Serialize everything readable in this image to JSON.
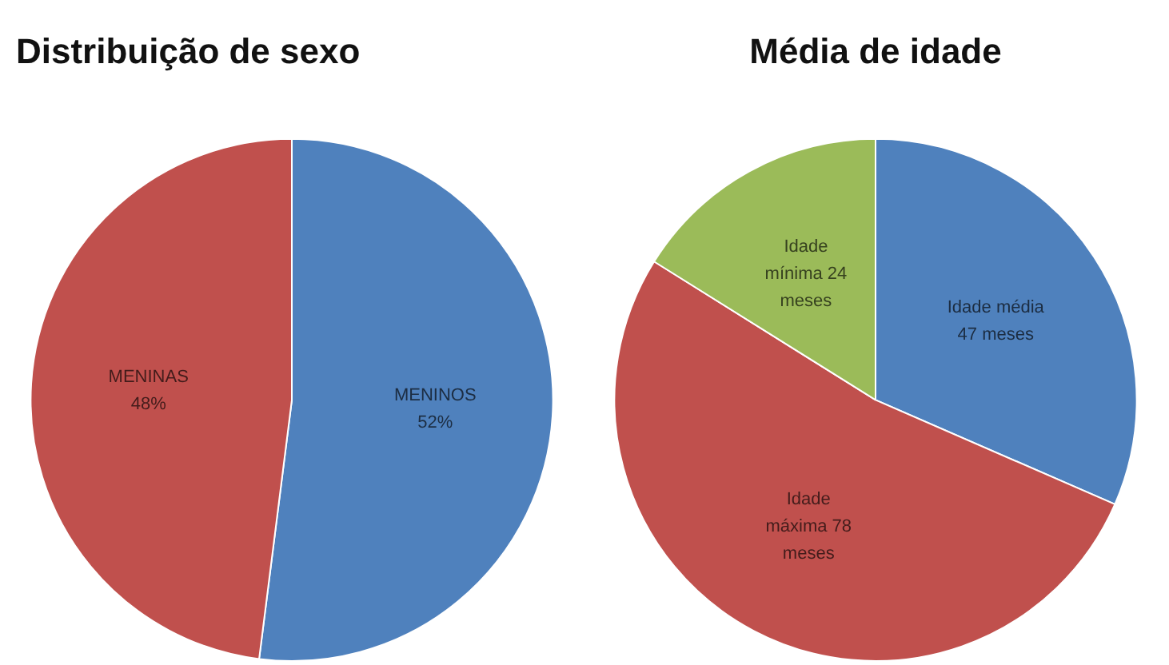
{
  "chart_data": [
    {
      "type": "pie",
      "title": "Distribuição de sexo",
      "categories": [
        "MENINOS",
        "MENINAS"
      ],
      "values": [
        52,
        48
      ],
      "value_labels": [
        "52%",
        "48%"
      ],
      "colors": [
        "#4f81bd",
        "#c0504d"
      ]
    },
    {
      "type": "pie",
      "title": "Média de idade",
      "categories": [
        "Idade média",
        "Idade máxima",
        "Idade mínima"
      ],
      "values": [
        47,
        78,
        24
      ],
      "value_labels": [
        "47 meses",
        "78 meses",
        "24 meses"
      ],
      "colors": [
        "#4f81bd",
        "#c0504d",
        "#9bbb59"
      ]
    }
  ]
}
